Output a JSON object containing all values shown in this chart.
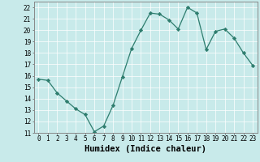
{
  "x": [
    0,
    1,
    2,
    3,
    4,
    5,
    6,
    7,
    8,
    9,
    10,
    11,
    12,
    13,
    14,
    15,
    16,
    17,
    18,
    19,
    20,
    21,
    22,
    23
  ],
  "y": [
    15.7,
    15.6,
    14.5,
    13.8,
    13.1,
    12.6,
    11.1,
    11.6,
    13.4,
    15.9,
    18.4,
    20.0,
    21.5,
    21.4,
    20.9,
    20.1,
    22.0,
    21.5,
    18.3,
    19.9,
    20.1,
    19.3,
    18.0,
    16.9
  ],
  "xlabel": "Humidex (Indice chaleur)",
  "ylim": [
    11,
    22.5
  ],
  "xlim": [
    -0.5,
    23.5
  ],
  "yticks": [
    11,
    12,
    13,
    14,
    15,
    16,
    17,
    18,
    19,
    20,
    21,
    22
  ],
  "xticks": [
    0,
    1,
    2,
    3,
    4,
    5,
    6,
    7,
    8,
    9,
    10,
    11,
    12,
    13,
    14,
    15,
    16,
    17,
    18,
    19,
    20,
    21,
    22,
    23
  ],
  "line_color": "#2e7d6e",
  "marker": "D",
  "marker_size": 2.2,
  "bg_color": "#c8eaea",
  "grid_color": "#ffffff",
  "tick_label_fontsize": 5.5,
  "xlabel_fontsize": 7.5
}
